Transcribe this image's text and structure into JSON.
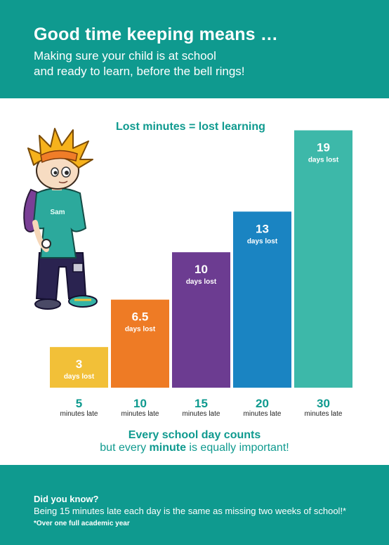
{
  "header": {
    "title": "Good time keeping means …",
    "subtitle_line1": "Making sure your child is at school",
    "subtitle_line2": "and ready to learn, before the bell rings!"
  },
  "character": {
    "name": "Sam"
  },
  "chart_data": {
    "type": "bar",
    "title": "Lost minutes = lost learning",
    "categories": [
      "5",
      "10",
      "15",
      "20",
      "30"
    ],
    "category_unit": "minutes late",
    "values": [
      3,
      6.5,
      10,
      13,
      19
    ],
    "value_labels": [
      "3",
      "6.5",
      "10",
      "13",
      "19"
    ],
    "value_unit": "days lost",
    "ylim": [
      0,
      19.6
    ],
    "grid": false,
    "colors": [
      "#f2c038",
      "#ee7b25",
      "#6c3c91",
      "#1a84c2",
      "#3db8a9"
    ]
  },
  "footer_message": {
    "line1": "Every school day counts",
    "line2_pre": "but every ",
    "line2_bold": "minute",
    "line2_post": " is equally important!"
  },
  "did_you_know": {
    "title": "Did you know?",
    "body": "Being 15 minutes late each day is the same as missing two weeks of school!*",
    "footnote": "*Over one full academic year"
  },
  "colors": {
    "teal": "#0f9a8f",
    "white": "#ffffff"
  }
}
